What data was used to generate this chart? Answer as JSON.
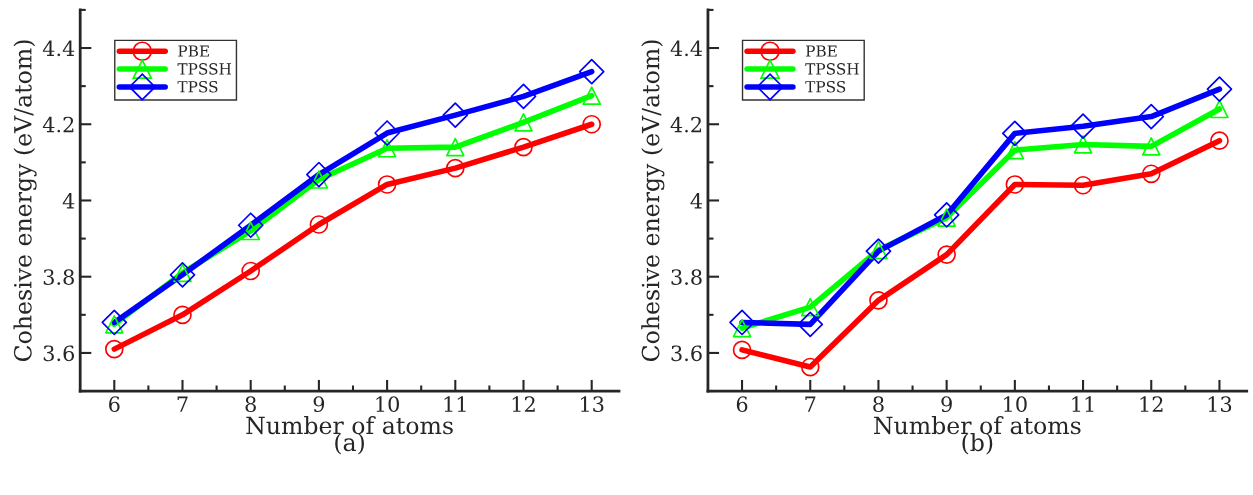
{
  "chart_data": [
    {
      "type": "line",
      "xlabel": "Number of atoms",
      "ylabel": "Cohesive energy (eV/atom)",
      "annotations": [
        "(a)"
      ],
      "x": [
        6,
        7,
        8,
        9,
        10,
        11,
        12,
        13
      ],
      "xlim": [
        5.5,
        13.4
      ],
      "xticks": [
        6,
        {
          "value": 6.5,
          "label": null
        },
        7,
        {
          "value": 7.5,
          "label": null
        },
        8,
        {
          "value": 8.5,
          "label": null
        },
        9,
        {
          "value": 9.5,
          "label": null
        },
        10,
        {
          "value": 10.5,
          "label": null
        },
        11,
        {
          "value": 11.5,
          "label": null
        },
        12,
        {
          "value": 12.5,
          "label": null
        },
        13
      ],
      "ylim": [
        3.5,
        4.5
      ],
      "yticks": [
        {
          "value": 3.5,
          "label": null
        },
        3.6,
        {
          "value": 3.7,
          "label": null
        },
        3.8,
        {
          "value": 3.9,
          "label": null
        },
        4,
        {
          "value": 4.1,
          "label": null
        },
        4.2,
        {
          "value": 4.3,
          "label": null
        },
        4.4,
        {
          "value": 4.5,
          "label": null
        }
      ],
      "grid": false,
      "legend": "top left",
      "line_style": "solid",
      "series": [
        {
          "name": "PBE",
          "color": "#ff0000",
          "marker": "circle",
          "values": [
            3.61,
            3.7,
            3.815,
            3.937,
            4.042,
            4.085,
            4.14,
            4.2
          ]
        },
        {
          "name": "TPSSH",
          "color": "#00ff00",
          "marker": "triangle",
          "values": [
            3.675,
            3.81,
            3.92,
            4.055,
            4.137,
            4.14,
            4.205,
            4.275
          ]
        },
        {
          "name": "TPSS",
          "color": "#0000ff",
          "marker": "diamond",
          "values": [
            3.68,
            3.805,
            3.935,
            4.068,
            4.177,
            4.224,
            4.273,
            4.338
          ]
        }
      ]
    },
    {
      "type": "line",
      "xlabel": "Number of atoms",
      "ylabel": "Cohesive energy (eV/atom)",
      "annotations": [
        "(b)"
      ],
      "x": [
        6,
        7,
        8,
        9,
        10,
        11,
        12,
        13
      ],
      "xlim": [
        5.5,
        13.4
      ],
      "xticks": [
        6,
        {
          "value": 6.5,
          "label": null
        },
        7,
        {
          "value": 7.5,
          "label": null
        },
        8,
        {
          "value": 8.5,
          "label": null
        },
        9,
        {
          "value": 9.5,
          "label": null
        },
        10,
        {
          "value": 10.5,
          "label": null
        },
        11,
        {
          "value": 11.5,
          "label": null
        },
        12,
        {
          "value": 12.5,
          "label": null
        },
        13
      ],
      "ylim": [
        3.5,
        4.5
      ],
      "yticks": [
        {
          "value": 3.5,
          "label": null
        },
        3.6,
        {
          "value": 3.7,
          "label": null
        },
        3.8,
        {
          "value": 3.9,
          "label": null
        },
        4,
        {
          "value": 4.1,
          "label": null
        },
        4.2,
        {
          "value": 4.3,
          "label": null
        },
        4.4,
        {
          "value": 4.5,
          "label": null
        }
      ],
      "grid": false,
      "legend": "top left",
      "line_style": "solid",
      "series": [
        {
          "name": "PBE",
          "color": "#ff0000",
          "marker": "circle",
          "values": [
            3.608,
            3.563,
            3.738,
            3.858,
            4.042,
            4.04,
            4.07,
            4.157
          ]
        },
        {
          "name": "TPSSH",
          "color": "#00ff00",
          "marker": "triangle",
          "values": [
            3.665,
            3.72,
            3.87,
            3.955,
            4.132,
            4.147,
            4.142,
            4.24
          ]
        },
        {
          "name": "TPSS",
          "color": "#0000ff",
          "marker": "diamond",
          "values": [
            3.68,
            3.675,
            3.867,
            3.962,
            4.176,
            4.195,
            4.22,
            4.292
          ]
        }
      ]
    }
  ]
}
